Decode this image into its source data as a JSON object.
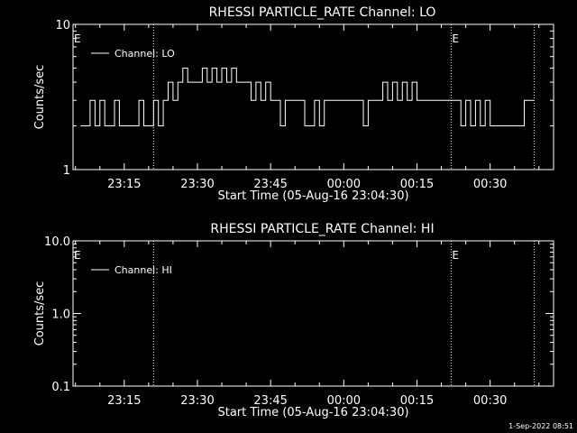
{
  "timestamp": "1-Sep-2022 08:51",
  "chart_data": [
    {
      "type": "line",
      "title": "RHESSI PARTICLE_RATE Channel: LO",
      "xlabel": "Start Time (05-Aug-16 23:04:30)",
      "ylabel": "Counts/sec",
      "yscale": "log",
      "ylim": [
        1,
        10
      ],
      "ytick_labels": [
        "1",
        "10"
      ],
      "xlim": [
        "23:04:30",
        "00:43:00"
      ],
      "xtick_labels": [
        "23:15",
        "23:30",
        "23:45",
        "00:00",
        "00:15",
        "00:30"
      ],
      "legend": "top-left",
      "series": [
        {
          "name": "Channel: LO",
          "x": [
            "23:06",
            "23:07",
            "23:08",
            "23:09",
            "23:10",
            "23:11",
            "23:12",
            "23:13",
            "23:14",
            "23:15",
            "23:16",
            "23:17",
            "23:18",
            "23:19",
            "23:20",
            "23:21",
            "23:22",
            "23:23",
            "23:24",
            "23:25",
            "23:26",
            "23:27",
            "23:28",
            "23:29",
            "23:30",
            "23:31",
            "23:32",
            "23:33",
            "23:34",
            "23:35",
            "23:36",
            "23:37",
            "23:38",
            "23:39",
            "23:40",
            "23:41",
            "23:42",
            "23:43",
            "23:44",
            "23:45",
            "23:46",
            "23:47",
            "23:48",
            "23:49",
            "23:50",
            "23:51",
            "23:52",
            "23:53",
            "23:54",
            "23:55",
            "23:56",
            "23:57",
            "23:58",
            "23:59",
            "00:00",
            "00:01",
            "00:02",
            "00:03",
            "00:04",
            "00:05",
            "00:06",
            "00:07",
            "00:08",
            "00:09",
            "00:10",
            "00:11",
            "00:12",
            "00:13",
            "00:14",
            "00:15",
            "00:16",
            "00:17",
            "00:18",
            "00:19",
            "00:20",
            "00:21",
            "00:22",
            "00:23",
            "00:24",
            "00:25",
            "00:26",
            "00:27",
            "00:28",
            "00:29",
            "00:30",
            "00:31",
            "00:32",
            "00:33",
            "00:34",
            "00:35",
            "00:36",
            "00:37",
            "00:38"
          ],
          "values": [
            2,
            2,
            3,
            2,
            3,
            2,
            2,
            3,
            2,
            2,
            2,
            2,
            3,
            2,
            2,
            3,
            2,
            3,
            4,
            3,
            4,
            5,
            4,
            4,
            4,
            5,
            4,
            5,
            4,
            5,
            4,
            5,
            4,
            4,
            4,
            3,
            4,
            3,
            4,
            3,
            3,
            2,
            3,
            3,
            3,
            3,
            2,
            2,
            3,
            2,
            3,
            3,
            3,
            3,
            3,
            3,
            3,
            3,
            2,
            3,
            3,
            3,
            4,
            3,
            4,
            3,
            4,
            3,
            4,
            3,
            3,
            3,
            3,
            3,
            3,
            3,
            3,
            3,
            2,
            3,
            2,
            3,
            2,
            3,
            2,
            2,
            2,
            2,
            2,
            2,
            2,
            3,
            3
          ]
        }
      ],
      "annotations": [
        {
          "label": "E",
          "time": "23:04:30"
        },
        {
          "label": "E",
          "time": "00:22:00"
        }
      ],
      "vlines": [
        "23:21:00",
        "00:22:00",
        "00:39:00"
      ]
    },
    {
      "type": "line",
      "title": "RHESSI PARTICLE_RATE Channel: HI",
      "xlabel": "Start Time (05-Aug-16 23:04:30)",
      "ylabel": "Counts/sec",
      "yscale": "log",
      "ylim": [
        0.1,
        10
      ],
      "ytick_labels": [
        "0.1",
        "1.0",
        "10.0"
      ],
      "xlim": [
        "23:04:30",
        "00:43:00"
      ],
      "xtick_labels": [
        "23:15",
        "23:30",
        "23:45",
        "00:00",
        "00:15",
        "00:30"
      ],
      "legend": "top-left",
      "series": [
        {
          "name": "Channel: HI",
          "x": [],
          "values": []
        }
      ],
      "annotations": [
        {
          "label": "E",
          "time": "23:04:30"
        },
        {
          "label": "E",
          "time": "00:22:00"
        }
      ],
      "vlines": [
        "23:21:00",
        "00:22:00",
        "00:39:00"
      ]
    }
  ]
}
